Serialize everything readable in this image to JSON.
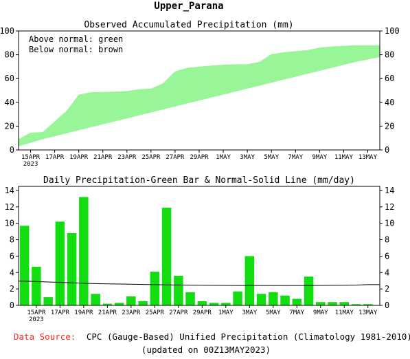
{
  "header": {
    "title": "Upper_Parana"
  },
  "colors": {
    "above": "#98f598",
    "bar": "#11dd11",
    "source_label": "#ff2222",
    "line": "#000000"
  },
  "chart_data": [
    {
      "type": "area",
      "title": "Observed Accumulated Precipitation (mm)",
      "notes": [
        "Above normal: green",
        "Below normal: brown"
      ],
      "x": [
        "13APR",
        "14APR",
        "15APR",
        "16APR",
        "17APR",
        "18APR",
        "19APR",
        "20APR",
        "21APR",
        "22APR",
        "23APR",
        "24APR",
        "25APR",
        "26APR",
        "27APR",
        "28APR",
        "29APR",
        "30APR",
        "1MAY",
        "2MAY",
        "3MAY",
        "4MAY",
        "5MAY",
        "6MAY",
        "7MAY",
        "8MAY",
        "9MAY",
        "10MAY",
        "11MAY",
        "12MAY",
        "13MAY"
      ],
      "xtick_labels": [
        "15APR",
        "17APR",
        "19APR",
        "21APR",
        "23APR",
        "25APR",
        "27APR",
        "29APR",
        "1MAY",
        "3MAY",
        "5MAY",
        "7MAY",
        "9MAY",
        "11MAY",
        "13MAY"
      ],
      "xtick_sublabel": "2023",
      "series": [
        {
          "name": "Observed",
          "values": [
            9,
            14.5,
            15,
            24,
            33,
            46.5,
            48.5,
            48.8,
            49,
            49.5,
            51,
            51.5,
            56,
            66,
            69,
            70,
            71,
            71.5,
            72,
            72,
            74,
            80.5,
            82,
            83,
            84,
            86,
            87,
            87.5,
            88,
            88,
            88
          ]
        },
        {
          "name": "Normal",
          "values": [
            3,
            6,
            9,
            11.5,
            14,
            16.5,
            19,
            21.5,
            24,
            26.5,
            29,
            31.5,
            34,
            36.5,
            39,
            41.5,
            44,
            46.5,
            49,
            51.5,
            54,
            56.5,
            59,
            61.5,
            64,
            66.5,
            69,
            71.5,
            74,
            76,
            78
          ]
        }
      ],
      "ylim": [
        0,
        100
      ],
      "yticks": [
        0,
        20,
        40,
        60,
        80,
        100
      ]
    },
    {
      "type": "bar",
      "title": "Daily Precipitation-Green Bar & Normal-Solid Line (mm/day)",
      "xtick_labels": [
        "15APR",
        "17APR",
        "19APR",
        "21APR",
        "23APR",
        "25APR",
        "27APR",
        "29APR",
        "1MAY",
        "3MAY",
        "5MAY",
        "7MAY",
        "9MAY",
        "11MAY",
        "13MAY"
      ],
      "xtick_sublabel": "2023",
      "series": [
        {
          "name": "Daily",
          "values": [
            9.7,
            4.7,
            1.0,
            10.2,
            8.8,
            13.2,
            1.4,
            0.2,
            0.3,
            1.1,
            0.5,
            4.1,
            11.9,
            3.6,
            1.6,
            0.5,
            0.3,
            0.3,
            1.7,
            6.0,
            1.4,
            1.6,
            1.2,
            0.8,
            3.5,
            0.4,
            0.4,
            0.4,
            0.15,
            0.15
          ]
        },
        {
          "name": "Normal",
          "values": [
            2.95,
            2.9,
            2.85,
            2.8,
            2.75,
            2.7,
            2.65,
            2.62,
            2.6,
            2.57,
            2.55,
            2.52,
            2.5,
            2.48,
            2.46,
            2.45,
            2.44,
            2.43,
            2.42,
            2.42,
            2.42,
            2.42,
            2.42,
            2.42,
            2.42,
            2.43,
            2.44,
            2.45,
            2.47,
            2.52
          ]
        }
      ],
      "ylim": [
        0,
        14.5
      ],
      "yticks": [
        0,
        2,
        4,
        6,
        8,
        10,
        12,
        14
      ]
    }
  ],
  "footer": {
    "source_label": "Data Source:",
    "source_text": "CPC (Gauge-Based) Unified Precipitation (Climatology 1981-2010)",
    "updated": "(updated on 00Z13MAY2023)"
  }
}
